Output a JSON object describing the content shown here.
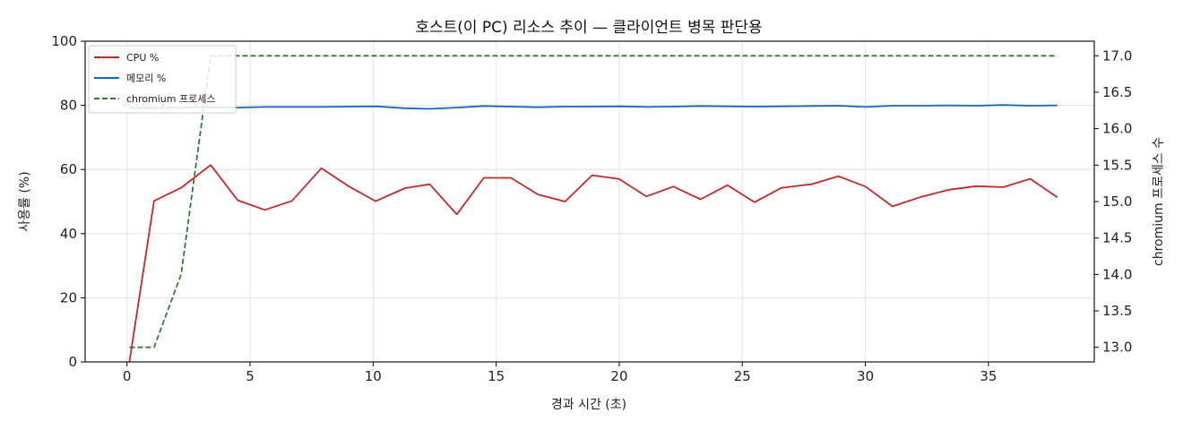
{
  "chart_data": {
    "type": "line",
    "title": "호스트(이 PC) 리소스 추이 — 클라이언트 병목 판단용",
    "xlabel": "경과 시간 (초)",
    "ylabel": "사용률 (%)",
    "y2label": "chromium 프로세스 수",
    "xlim": [
      -1.7,
      39.3
    ],
    "ylim": [
      0,
      100
    ],
    "y2lim": [
      12.8,
      17.2
    ],
    "xticks": [
      0,
      5,
      10,
      15,
      20,
      25,
      30,
      35
    ],
    "yticks": [
      0,
      20,
      40,
      60,
      80,
      100
    ],
    "y2ticks": [
      13.0,
      13.5,
      14.0,
      14.5,
      15.0,
      15.5,
      16.0,
      16.5,
      17.0
    ],
    "grid": true,
    "legend_position": "top-left",
    "series": [
      {
        "name": "CPU %",
        "axis": "left",
        "color": "#c62828",
        "style": "solid",
        "x": [
          0.1,
          1.1,
          2.2,
          3.4,
          4.5,
          5.6,
          6.7,
          7.9,
          9.0,
          10.1,
          11.3,
          12.3,
          13.4,
          14.5,
          15.6,
          16.7,
          17.8,
          18.9,
          20.0,
          21.1,
          22.2,
          23.3,
          24.4,
          25.5,
          26.6,
          27.8,
          28.9,
          30.0,
          31.1,
          32.2,
          33.4,
          34.5,
          35.6,
          36.7,
          37.8
        ],
        "y": [
          0,
          50.2,
          54.3,
          61.4,
          50.4,
          47.4,
          50.2,
          60.4,
          54.8,
          50.1,
          54.2,
          55.4,
          46.0,
          57.4,
          57.4,
          52.2,
          50.0,
          58.2,
          57.0,
          51.6,
          54.7,
          50.7,
          55.1,
          49.8,
          54.3,
          55.4,
          57.9,
          54.7,
          48.5,
          51.3,
          53.7,
          54.8,
          54.5,
          57.1,
          51.3
        ]
      },
      {
        "name": "메모리 %",
        "axis": "left",
        "color": "#1565c0",
        "style": "solid",
        "x": [
          0.1,
          1.1,
          2.2,
          3.4,
          4.5,
          5.6,
          6.7,
          7.9,
          9.0,
          10.1,
          11.3,
          12.3,
          13.4,
          14.5,
          15.6,
          16.7,
          17.8,
          18.9,
          20.0,
          21.1,
          22.2,
          23.3,
          24.4,
          25.5,
          26.6,
          27.8,
          28.9,
          30.0,
          31.1,
          32.2,
          33.4,
          34.5,
          35.6,
          36.7,
          37.8
        ],
        "y": [
          79.1,
          79.2,
          79.3,
          79.4,
          79.3,
          79.5,
          79.5,
          79.5,
          79.6,
          79.7,
          79.1,
          78.9,
          79.3,
          79.8,
          79.6,
          79.4,
          79.6,
          79.6,
          79.7,
          79.5,
          79.6,
          79.8,
          79.7,
          79.6,
          79.7,
          79.8,
          79.9,
          79.5,
          79.9,
          79.9,
          80.0,
          79.9,
          80.1,
          79.9,
          80.0
        ]
      },
      {
        "name": "chromium 프로세스",
        "axis": "right",
        "color": "#2e7d32",
        "style": "dashed",
        "x": [
          0.1,
          1.1,
          2.2,
          3.4,
          4.5,
          5.6,
          6.7,
          7.9,
          9.0,
          10.1,
          11.3,
          12.3,
          13.4,
          14.5,
          15.6,
          16.7,
          17.8,
          18.9,
          20.0,
          21.1,
          22.2,
          23.3,
          24.4,
          25.5,
          26.6,
          27.8,
          28.9,
          30.0,
          31.1,
          32.2,
          33.4,
          34.5,
          35.6,
          36.7,
          37.8
        ],
        "y": [
          13,
          13,
          14,
          17,
          17,
          17,
          17,
          17,
          17,
          17,
          17,
          17,
          17,
          17,
          17,
          17,
          17,
          17,
          17,
          17,
          17,
          17,
          17,
          17,
          17,
          17,
          17,
          17,
          17,
          17,
          17,
          17,
          17,
          17,
          17
        ]
      }
    ]
  }
}
